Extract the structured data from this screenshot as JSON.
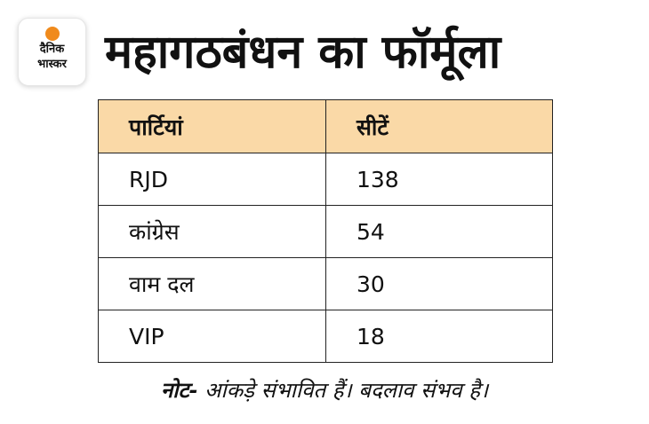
{
  "logo": {
    "line1": "दैनिक",
    "line2": "भास्कर",
    "accent": "#f08a1c"
  },
  "title": "महागठबंधन का फॉर्मूला",
  "table": {
    "headers": [
      "पार्टियां",
      "सीटें"
    ],
    "header_color": "#fad9a7",
    "rows": [
      {
        "party": "RJD",
        "seats": "138"
      },
      {
        "party": "कांग्रेस",
        "seats": "54"
      },
      {
        "party": "वाम दल",
        "seats": "30"
      },
      {
        "party": "VIP",
        "seats": "18"
      }
    ]
  },
  "note": {
    "label": "नोट-",
    "text": " आंकड़े संभावित हैं। बदलाव संभव है।"
  }
}
